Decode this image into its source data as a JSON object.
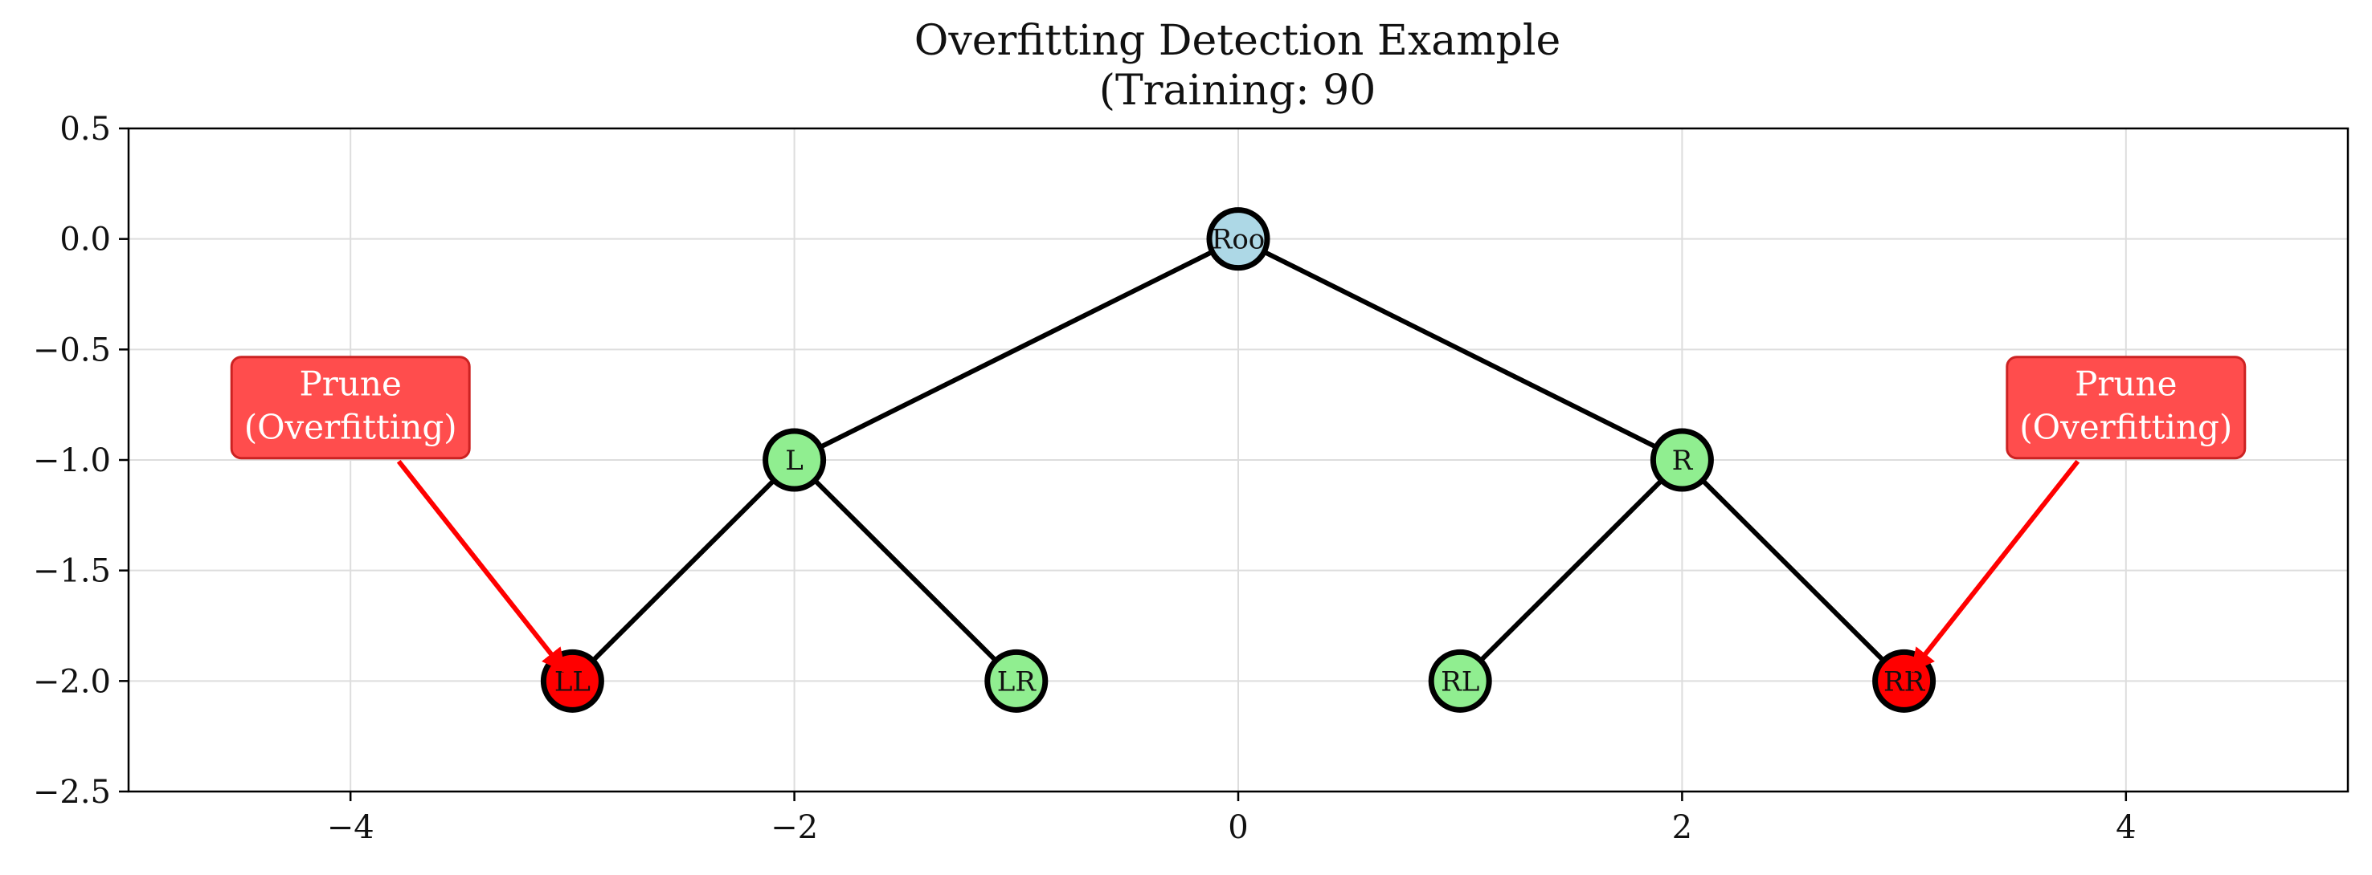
{
  "chart_data": {
    "type": "tree-diagram",
    "title_lines": [
      "Overfitting Detection Example",
      "(Training: 90"
    ],
    "xlim": [
      -5,
      5
    ],
    "ylim": [
      -2.5,
      0.5
    ],
    "x_ticks": [
      -4,
      -2,
      0,
      2,
      4
    ],
    "x_tick_labels": [
      "−4",
      "−2",
      "0",
      "2",
      "4"
    ],
    "y_ticks": [
      0.5,
      0.0,
      -0.5,
      -1.0,
      -1.5,
      -2.0,
      -2.5
    ],
    "y_tick_labels": [
      "0.5",
      "0.0",
      "−0.5",
      "−1.0",
      "−1.5",
      "−2.0",
      "−2.5"
    ],
    "grid": true,
    "nodes": [
      {
        "id": "root",
        "label": "Roo",
        "x": 0,
        "y": 0,
        "color": "#add8e6"
      },
      {
        "id": "L",
        "label": "L",
        "x": -2,
        "y": -1,
        "color": "#90ee90"
      },
      {
        "id": "R",
        "label": "R",
        "x": 2,
        "y": -1,
        "color": "#90ee90"
      },
      {
        "id": "LL",
        "label": "LL",
        "x": -3,
        "y": -2,
        "color": "#ff0000"
      },
      {
        "id": "LR",
        "label": "LR",
        "x": -1,
        "y": -2,
        "color": "#90ee90"
      },
      {
        "id": "RL",
        "label": "RL",
        "x": 1,
        "y": -2,
        "color": "#90ee90"
      },
      {
        "id": "RR",
        "label": "RR",
        "x": 3,
        "y": -2,
        "color": "#ff0000"
      }
    ],
    "edges": [
      [
        "root",
        "L"
      ],
      [
        "root",
        "R"
      ],
      [
        "L",
        "LL"
      ],
      [
        "L",
        "LR"
      ],
      [
        "R",
        "RL"
      ],
      [
        "R",
        "RR"
      ]
    ],
    "annotations": [
      {
        "lines": [
          "Prune",
          "(Overfitting)"
        ],
        "text_x": -4,
        "text_y": -0.85,
        "target": "LL"
      },
      {
        "lines": [
          "Prune",
          "(Overfitting)"
        ],
        "text_x": 4,
        "text_y": -0.85,
        "target": "RR"
      }
    ],
    "colors": {
      "edge": "#000000",
      "grid": "#dddddd",
      "arrow": "#ff0000",
      "annotation_box": "#ff4d4d",
      "annotation_border": "#cc2222"
    }
  }
}
